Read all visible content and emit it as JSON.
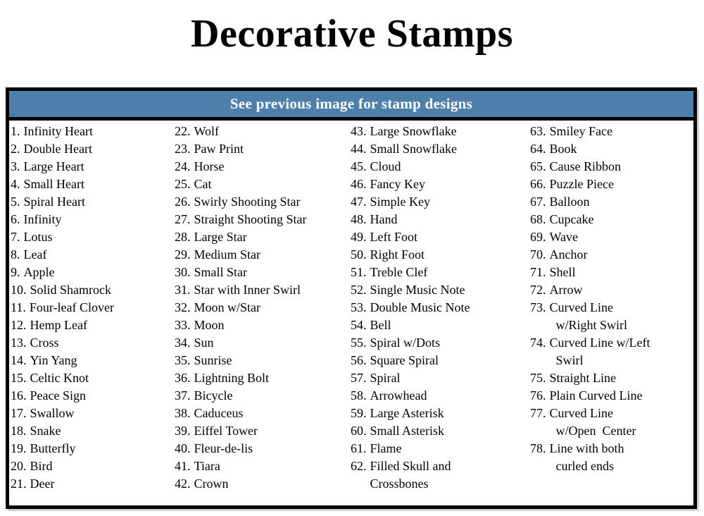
{
  "page": {
    "title": "Decorative Stamps"
  },
  "table": {
    "header": "See previous image for stamp designs",
    "header_bg": "#4E7FAB",
    "header_text_color": "#FFFFFF",
    "border_color": "#000000",
    "columns": [
      {
        "items": [
          {
            "num": "1.",
            "label": "Infinity Heart"
          },
          {
            "num": "2.",
            "label": "Double Heart"
          },
          {
            "num": "3.",
            "label": "Large Heart"
          },
          {
            "num": "4.",
            "label": "Small Heart"
          },
          {
            "num": "5.",
            "label": "Spiral Heart"
          },
          {
            "num": "6.",
            "label": "Infinity"
          },
          {
            "num": "7.",
            "label": "Lotus"
          },
          {
            "num": "8.",
            "label": "Leaf"
          },
          {
            "num": "9.",
            "label": "Apple"
          },
          {
            "num": "10.",
            "label": "Solid Shamrock"
          },
          {
            "num": "11.",
            "label": "Four-leaf Clover"
          },
          {
            "num": "12.",
            "label": "Hemp Leaf"
          },
          {
            "num": "13.",
            "label": "Cross"
          },
          {
            "num": "14.",
            "label": "Yin Yang"
          },
          {
            "num": "15.",
            "label": "Celtic Knot"
          },
          {
            "num": "16.",
            "label": "Peace Sign"
          },
          {
            "num": "17.",
            "label": "Swallow"
          },
          {
            "num": "18.",
            "label": "Snake"
          },
          {
            "num": "19.",
            "label": "Butterfly"
          },
          {
            "num": "20.",
            "label": "Bird"
          },
          {
            "num": "21.",
            "label": "Deer"
          }
        ]
      },
      {
        "items": [
          {
            "num": "22.",
            "label": "Wolf"
          },
          {
            "num": "23.",
            "label": "Paw Print"
          },
          {
            "num": "24.",
            "label": "Horse"
          },
          {
            "num": "25.",
            "label": "Cat"
          },
          {
            "num": "26.",
            "label": "Swirly Shooting Star"
          },
          {
            "num": "27.",
            "label": "Straight Shooting Star"
          },
          {
            "num": "28.",
            "label": "Large Star"
          },
          {
            "num": "29.",
            "label": "Medium Star"
          },
          {
            "num": "30.",
            "label": "Small Star"
          },
          {
            "num": "31.",
            "label": "Star with Inner Swirl"
          },
          {
            "num": "32.",
            "label": "Moon w/Star"
          },
          {
            "num": "33.",
            "label": "Moon"
          },
          {
            "num": "34.",
            "label": "Sun"
          },
          {
            "num": "35.",
            "label": "Sunrise"
          },
          {
            "num": "36.",
            "label": "Lightning Bolt"
          },
          {
            "num": "37.",
            "label": "Bicycle"
          },
          {
            "num": "38.",
            "label": "Caduceus"
          },
          {
            "num": "39.",
            "label": "Eiffel Tower"
          },
          {
            "num": "40.",
            "label": "Fleur-de-lis"
          },
          {
            "num": "41.",
            "label": "Tiara"
          },
          {
            "num": "42.",
            "label": "Crown"
          }
        ]
      },
      {
        "items": [
          {
            "num": "43.",
            "label": "Large Snowflake"
          },
          {
            "num": "44.",
            "label": "Small Snowflake"
          },
          {
            "num": "45.",
            "label": "Cloud"
          },
          {
            "num": "46.",
            "label": "Fancy Key"
          },
          {
            "num": "47.",
            "label": "Simple Key"
          },
          {
            "num": "48.",
            "label": "Hand"
          },
          {
            "num": "49.",
            "label": "Left Foot"
          },
          {
            "num": "50.",
            "label": "Right Foot"
          },
          {
            "num": "51.",
            "label": "Treble Clef"
          },
          {
            "num": "52.",
            "label": "Single Music Note"
          },
          {
            "num": "53.",
            "label": "Double Music Note"
          },
          {
            "num": "54.",
            "label": "Bell"
          },
          {
            "num": "55.",
            "label": "Spiral w/Dots"
          },
          {
            "num": "56.",
            "label": "Square Spiral"
          },
          {
            "num": "57.",
            "label": "Spiral"
          },
          {
            "num": "58.",
            "label": "Arrowhead"
          },
          {
            "num": "59.",
            "label": "Large Asterisk"
          },
          {
            "num": "60.",
            "label": "Small Asterisk"
          },
          {
            "num": "61.",
            "label": "Flame"
          },
          {
            "num": "62.",
            "label": "Filled Skull and\nCrossbones"
          }
        ]
      },
      {
        "items": [
          {
            "num": "63.",
            "label": "Smiley Face"
          },
          {
            "num": "64.",
            "label": "Book"
          },
          {
            "num": "65.",
            "label": "Cause Ribbon"
          },
          {
            "num": "66.",
            "label": "Puzzle Piece"
          },
          {
            "num": "67.",
            "label": "Balloon"
          },
          {
            "num": "68.",
            "label": "Cupcake"
          },
          {
            "num": "69.",
            "label": "Wave"
          },
          {
            "num": "70.",
            "label": "Anchor"
          },
          {
            "num": "71.",
            "label": "Shell"
          },
          {
            "num": "72.",
            "label": "Arrow"
          },
          {
            "num": "73.",
            "label": "Curved Line\n  w/Right Swirl"
          },
          {
            "num": "74.",
            "label": "Curved Line w/Left\n  Swirl"
          },
          {
            "num": "75.",
            "label": "Straight Line"
          },
          {
            "num": "76.",
            "label": "Plain Curved Line"
          },
          {
            "num": "77.",
            "label": "Curved Line\n  w/Open  Center"
          },
          {
            "num": "78.",
            "label": "Line with both\n  curled ends"
          }
        ]
      }
    ]
  }
}
